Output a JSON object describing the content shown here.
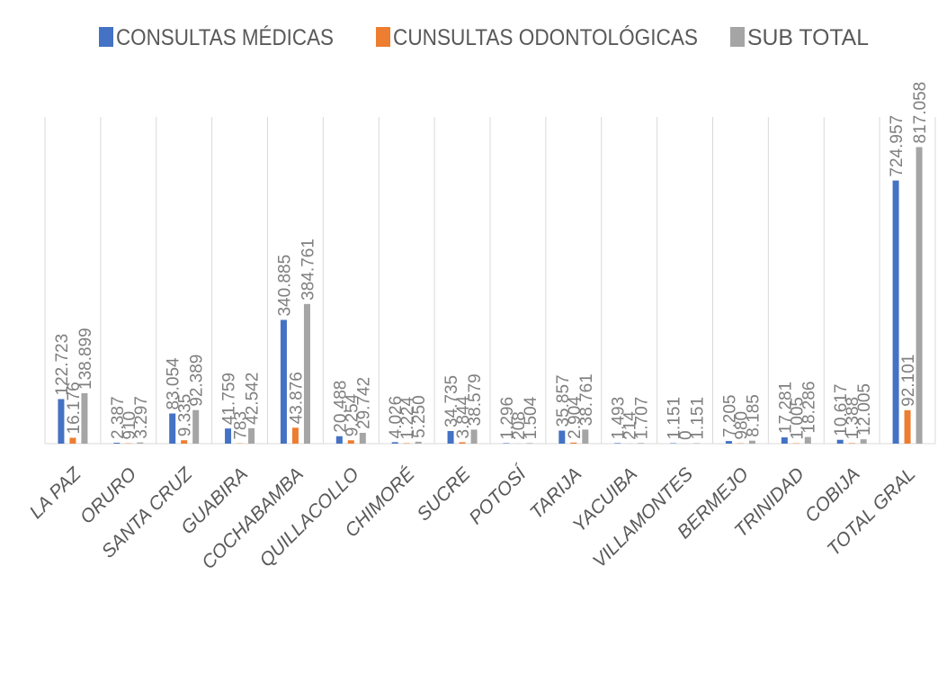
{
  "chart_data": {
    "type": "bar",
    "categories": [
      "LA PAZ",
      "ORURO",
      "SANTA CRUZ",
      "GUABIRA",
      "COCHABAMBA",
      "QUILLACOLLO",
      "CHIMORÉ",
      "SUCRE",
      "POTOSÍ",
      "TARIJA",
      "YACUIBA",
      "VILLAMONTES",
      "BERMEJO",
      "TRINIDAD",
      "COBIJA",
      "TOTAL GRAL"
    ],
    "series": [
      {
        "name": "CONSULTAS MÉDICAS",
        "color": "#4472c4",
        "values": [
          122723,
          2387,
          83054,
          41759,
          340885,
          20488,
          4026,
          34735,
          1296,
          35857,
          1493,
          1151,
          7205,
          17281,
          10617,
          724957
        ],
        "value_labels": [
          "122.723",
          "2.387",
          "83.054",
          "41.759",
          "340.885",
          "20.488",
          "4.026",
          "34.735",
          "1.296",
          "35.857",
          "1.493",
          "1.151",
          "7.205",
          "17.281",
          "10.617",
          "724.957"
        ]
      },
      {
        "name": "CUNSULTAS ODONTOLÓGICAS",
        "color": "#ed7d31",
        "values": [
          16176,
          910,
          9335,
          783,
          43876,
          9254,
          1224,
          3844,
          208,
          2904,
          214,
          0,
          980,
          1005,
          1388,
          92101
        ],
        "value_labels": [
          "16.176",
          "910",
          "9.335",
          "783",
          "43.876",
          "9.254",
          "1.224",
          "3.844",
          "208",
          "2.904",
          "214",
          "0",
          "980",
          "1.005",
          "1.388",
          "92.101"
        ]
      },
      {
        "name": "SUB TOTAL",
        "color": "#a5a5a5",
        "values": [
          138899,
          3297,
          92389,
          42542,
          384761,
          29742,
          5250,
          38579,
          1504,
          38761,
          1707,
          1151,
          8185,
          18286,
          12005,
          817058
        ],
        "value_labels": [
          "138.899",
          "3.297",
          "92.389",
          "42.542",
          "384.761",
          "29.742",
          "5.250",
          "38.579",
          "1.504",
          "38.761",
          "1.707",
          "1.151",
          "8.185",
          "18.286",
          "12.005",
          "817.058"
        ]
      }
    ],
    "ylim": [
      0,
      900000
    ]
  }
}
